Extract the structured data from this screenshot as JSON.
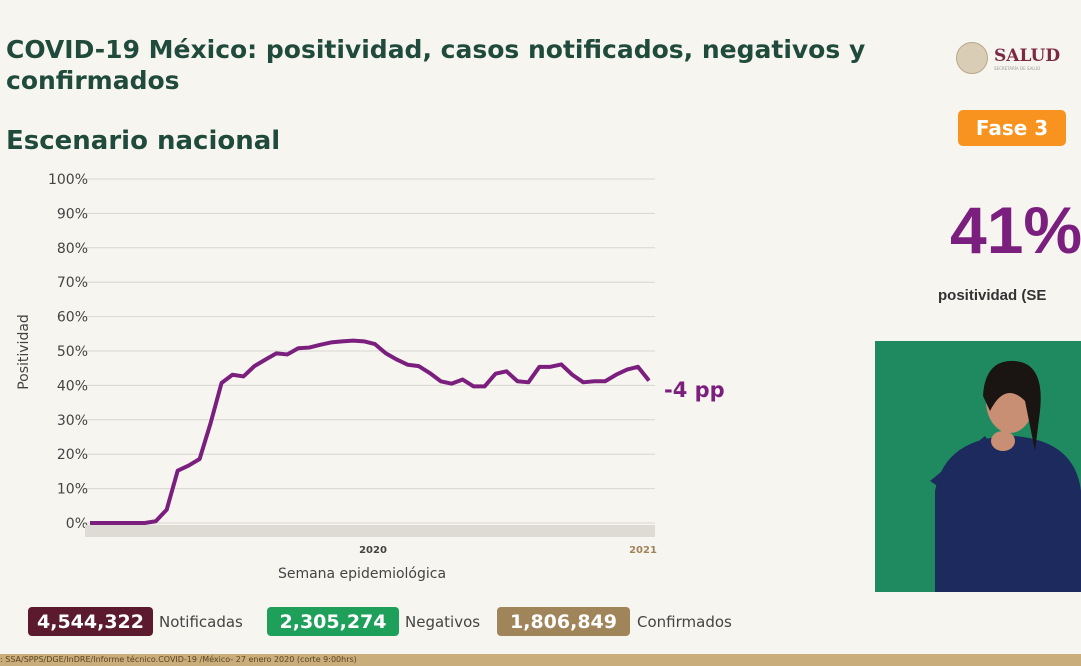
{
  "header": {
    "title": "COVID-19 México: positividad, casos notificados, negativos y confirmados",
    "subtitle": "Escenario nacional"
  },
  "logo": {
    "text": "SALUD",
    "subtext": "SECRETARÍA DE SALUD"
  },
  "phase_badge": {
    "label": "Fase 3",
    "color": "#f7931e"
  },
  "positivity": {
    "value": "41%",
    "label": "positividad (SE"
  },
  "stats": [
    {
      "value": "4,544,322",
      "label": "Notificadas",
      "color": "#5c1a2e"
    },
    {
      "value": "2,305,274",
      "label": "Negativos",
      "color": "#1fa05a"
    },
    {
      "value": "1,806,849",
      "label": "Confirmados",
      "color": "#a0845a"
    }
  ],
  "footer": {
    "text": ": SSA/SPPS/DGE/InDRE/Informe técnico.COVID-19 /México- 27 enero 2020 (corte 9:00hrs)"
  },
  "chart_data": {
    "type": "line",
    "title": "",
    "xlabel": "Semana epidemiológica",
    "ylabel": "Positividad",
    "ylim": [
      0,
      100
    ],
    "yticks": [
      "0%",
      "10%",
      "20%",
      "30%",
      "40%",
      "50%",
      "60%",
      "70%",
      "80%",
      "90%",
      "100%"
    ],
    "year_labels": [
      "2020",
      "2021"
    ],
    "grid": true,
    "line_color": "#7b1f7e",
    "annotation": "-4 pp",
    "series": [
      {
        "values": [
          0,
          0,
          0,
          0,
          0,
          0,
          0.5,
          3.9,
          15.2,
          16.7,
          18.6,
          29,
          40.7,
          43.1,
          42.6,
          45.6,
          47.5,
          49.3,
          49,
          50.8,
          51,
          51.8,
          52.5,
          52.8,
          53,
          52.8,
          52,
          49.3,
          47.5,
          46,
          45.6,
          43.6,
          41.2,
          40.5,
          41.7,
          39.7,
          39.7,
          43.4,
          44.1,
          41.2,
          40.9,
          45.4,
          45.4,
          46.1,
          43.1,
          40.9,
          41.2,
          41.2,
          43.1,
          44.6,
          45.4,
          41.4
        ]
      }
    ]
  }
}
